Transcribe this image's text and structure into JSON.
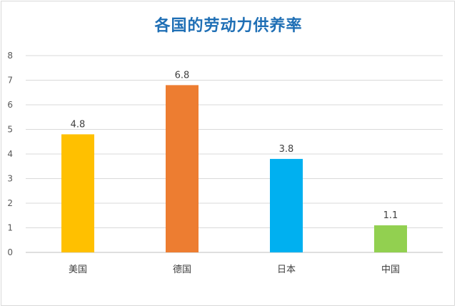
{
  "chart_data": {
    "type": "bar",
    "title": "各国的劳动力供养率",
    "categories": [
      "美国",
      "德国",
      "日本",
      "中国"
    ],
    "values": [
      4.8,
      6.8,
      3.8,
      1.1
    ],
    "data_labels": [
      "4.8",
      "6.8",
      "3.8",
      "1.1"
    ],
    "colors": [
      "#ffc000",
      "#ed7d31",
      "#00b0f0",
      "#92d050"
    ],
    "ylim": [
      0,
      8
    ],
    "yticks": [
      0,
      1,
      2,
      3,
      4,
      5,
      6,
      7,
      8
    ],
    "grid": true,
    "legend": "none",
    "xlabel": "",
    "ylabel": ""
  }
}
